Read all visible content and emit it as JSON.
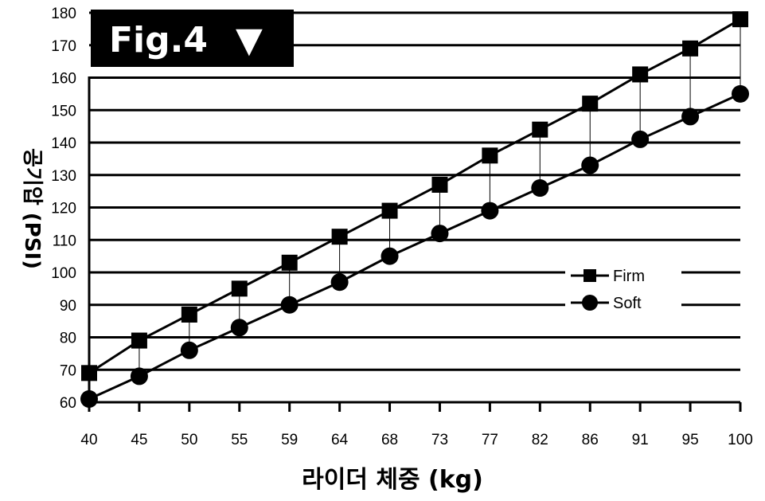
{
  "figure_label": "Fig.4",
  "figure_marker": "▼",
  "chart_data": {
    "type": "line",
    "xlabel": "라이더 체중 (kg)",
    "ylabel": "공기압 (PSI)",
    "categories": [
      "40",
      "45",
      "50",
      "55",
      "59",
      "64",
      "68",
      "73",
      "77",
      "82",
      "86",
      "91",
      "95",
      "100"
    ],
    "yticks": [
      60,
      70,
      80,
      90,
      100,
      110,
      120,
      130,
      140,
      150,
      160,
      170,
      180
    ],
    "ylim": [
      60,
      180
    ],
    "grid": true,
    "legend_position": "right-middle",
    "series": [
      {
        "name": "Firm",
        "marker": "square",
        "values": [
          69,
          79,
          87,
          95,
          103,
          111,
          119,
          127,
          136,
          144,
          152,
          161,
          169,
          178
        ]
      },
      {
        "name": "Soft",
        "marker": "circle",
        "values": [
          61,
          68,
          76,
          83,
          90,
          97,
          105,
          112,
          119,
          126,
          133,
          141,
          148,
          155
        ]
      }
    ],
    "colors": {
      "line": "#000000",
      "grid": "#000000",
      "figure_box": "#000000"
    }
  }
}
